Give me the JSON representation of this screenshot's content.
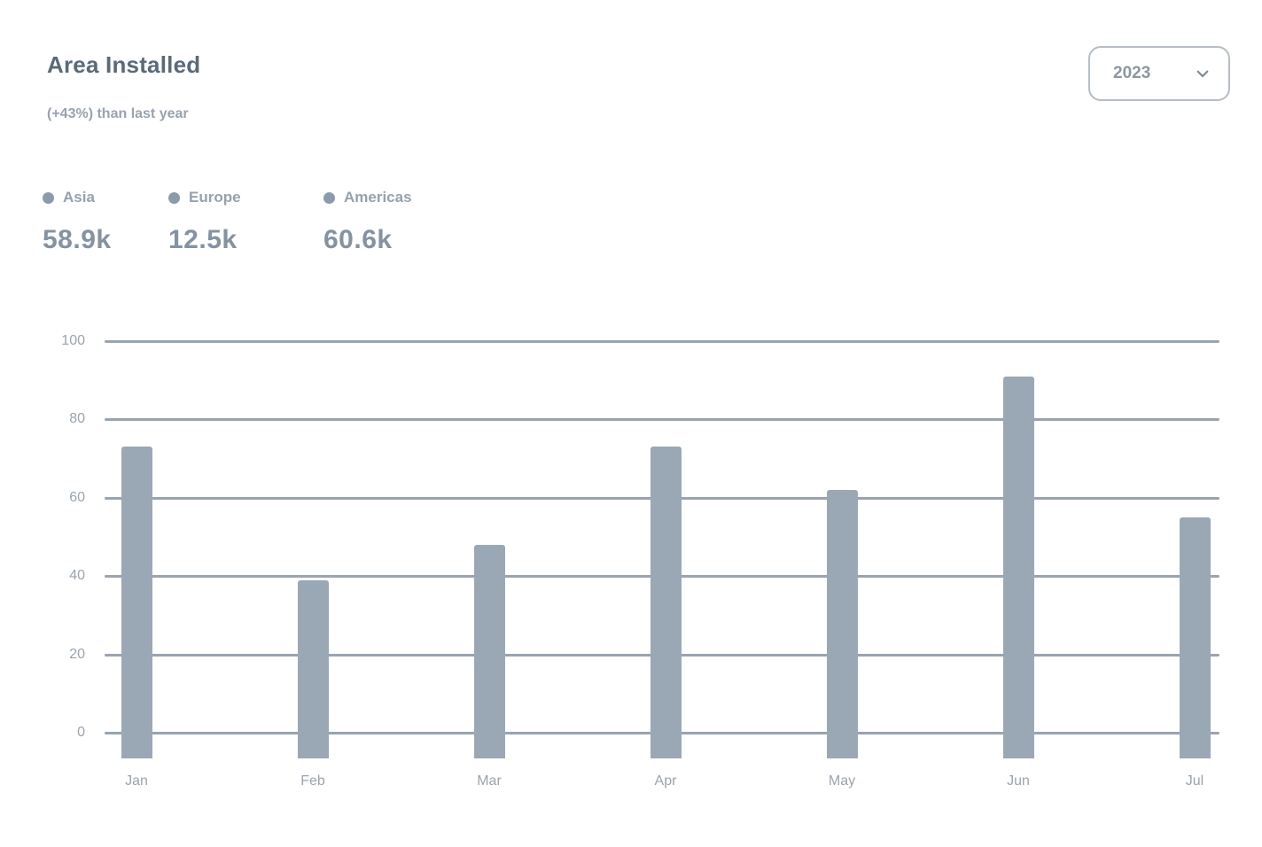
{
  "card": {
    "title": "Area Installed",
    "subtitle": "(+43%) than last year",
    "year_select": {
      "value": "2023",
      "icon": "chevron-down-icon"
    }
  },
  "legend": [
    {
      "label": "Asia",
      "value": "58.9k",
      "icon": "legend-dot-icon"
    },
    {
      "label": "Europe",
      "value": "12.5k",
      "icon": "legend-dot-icon"
    },
    {
      "label": "Americas",
      "value": "60.6k",
      "icon": "legend-dot-icon"
    }
  ],
  "chart_data": {
    "type": "bar",
    "title": "Area Installed",
    "subtitle": "(+43%) than last year",
    "categories": [
      "Jan",
      "Feb",
      "Mar",
      "Apr",
      "May",
      "Jun",
      "Jul"
    ],
    "series": [
      {
        "name": "Area installed",
        "values": [
          73,
          39,
          48,
          73,
          62,
          91,
          55
        ]
      }
    ],
    "xlabel": "",
    "ylabel": "",
    "ylim": [
      0,
      100
    ],
    "yticks": [
      0,
      20,
      40,
      60,
      80,
      100
    ],
    "grid": true,
    "legend_position": "top-left",
    "bar_color": "#9aa8b6"
  },
  "colors": {
    "grid": "#99a4b0",
    "bar": "#9aa8b6",
    "axis_label": "#99a4af",
    "accent_text": "#8492a2",
    "muted_text": "#96a1ad"
  }
}
